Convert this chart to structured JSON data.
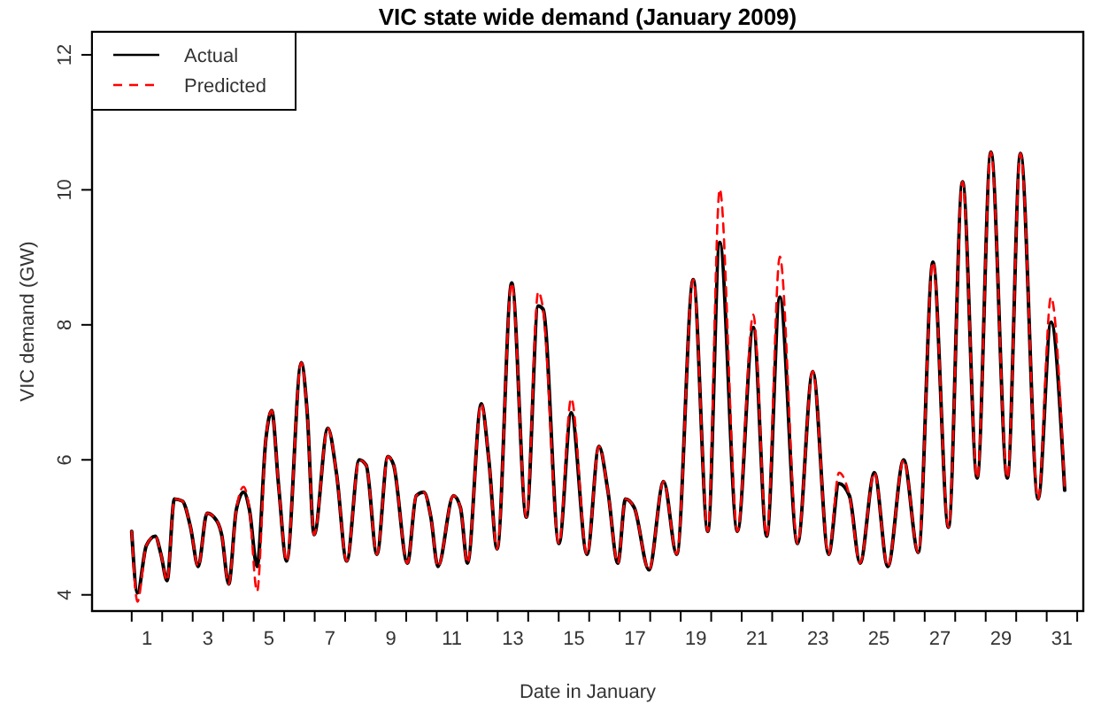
{
  "chart_data": {
    "type": "line",
    "title": "VIC state wide demand (January 2009)",
    "xlabel": "Date in January",
    "ylabel": "VIC demand (GW)",
    "x": [
      0.5,
      0.69,
      0.98,
      1.27,
      1.46,
      1.66,
      1.9,
      2.16,
      2.43,
      2.68,
      2.97,
      3.2,
      3.45,
      3.68,
      3.93,
      4.17,
      4.36,
      4.61,
      4.9,
      5.09,
      5.32,
      5.58,
      6.06,
      6.25,
      6.48,
      6.93,
      7.22,
      7.55,
      7.96,
      8.19,
      8.54,
      8.9,
      9.09,
      9.54,
      9.83,
      10.08,
      10.31,
      10.54,
      11.05,
      11.28,
      11.51,
      11.96,
      12.21,
      12.48,
      12.96,
      13.44,
      13.83,
      13.99,
      14.51,
      14.91,
      15.43,
      15.82,
      16.11,
      16.44,
      16.69,
      16.98,
      17.46,
      17.94,
      18.37,
      18.91,
      19.39,
      19.78,
      20.36,
      20.88,
      21.32,
      21.75,
      22.33,
      22.83,
      23.35,
      23.69,
      24.03,
      24.38,
      24.85,
      25.29,
      25.81,
      26.29,
      26.77,
      27.28,
      27.74,
      28.22,
      28.67,
      29.21,
      29.64,
      30.22,
      30.64,
      31.09
    ],
    "series": [
      {
        "name": "Actual",
        "color": "#000000",
        "line_style": "solid",
        "values": [
          4.94,
          4.03,
          4.73,
          4.87,
          4.6,
          4.21,
          5.42,
          5.39,
          5.0,
          4.42,
          5.21,
          5.15,
          4.89,
          4.16,
          5.26,
          5.52,
          5.26,
          4.42,
          6.31,
          6.73,
          5.6,
          4.5,
          7.44,
          6.73,
          4.89,
          6.47,
          5.78,
          4.5,
          6.0,
          5.92,
          4.6,
          6.05,
          5.92,
          4.47,
          5.47,
          5.52,
          5.15,
          4.42,
          5.47,
          5.29,
          4.47,
          6.83,
          6.0,
          4.68,
          8.62,
          5.15,
          8.28,
          8.23,
          4.76,
          6.7,
          4.6,
          6.2,
          5.55,
          4.47,
          5.42,
          5.29,
          4.37,
          5.68,
          4.6,
          8.67,
          4.94,
          9.22,
          4.94,
          7.96,
          4.87,
          8.41,
          4.76,
          7.31,
          4.6,
          5.65,
          5.47,
          4.47,
          5.81,
          4.42,
          6.0,
          4.63,
          8.93,
          5.0,
          10.12,
          5.73,
          10.56,
          5.73,
          10.54,
          5.42,
          8.04,
          5.55
        ]
      },
      {
        "name": "Predicted",
        "color": "#ff0000",
        "line_style": "dashed",
        "values": [
          4.94,
          3.9,
          4.73,
          4.87,
          4.6,
          4.21,
          5.42,
          5.39,
          5.0,
          4.42,
          5.21,
          5.15,
          4.89,
          4.16,
          5.26,
          5.6,
          5.26,
          4.05,
          6.31,
          6.73,
          5.6,
          4.5,
          7.44,
          6.73,
          4.89,
          6.47,
          5.78,
          4.5,
          6.0,
          5.92,
          4.6,
          6.05,
          5.92,
          4.47,
          5.47,
          5.52,
          5.15,
          4.42,
          5.47,
          5.29,
          4.47,
          6.83,
          6.0,
          4.68,
          8.62,
          5.15,
          8.49,
          8.23,
          4.76,
          6.91,
          4.6,
          6.2,
          5.55,
          4.47,
          5.42,
          5.29,
          4.37,
          5.68,
          4.6,
          8.67,
          4.94,
          10.01,
          4.94,
          8.15,
          4.87,
          9.01,
          4.76,
          7.31,
          4.6,
          5.81,
          5.47,
          4.47,
          5.81,
          4.42,
          6.0,
          4.63,
          8.93,
          5.0,
          10.12,
          5.73,
          10.56,
          5.73,
          10.54,
          5.42,
          8.41,
          5.55
        ]
      }
    ],
    "xlim": [
      -0.8,
      31.7
    ],
    "xticks": [
      {
        "value": 0.5,
        "label": null
      },
      1,
      {
        "value": 1.5,
        "label": null
      },
      {
        "value": 2.5,
        "label": null
      },
      3,
      {
        "value": 3.5,
        "label": null
      },
      {
        "value": 4.5,
        "label": null
      },
      5,
      {
        "value": 5.5,
        "label": null
      },
      {
        "value": 6.5,
        "label": null
      },
      7,
      {
        "value": 7.5,
        "label": null
      },
      {
        "value": 8.5,
        "label": null
      },
      9,
      {
        "value": 9.5,
        "label": null
      },
      {
        "value": 10.5,
        "label": null
      },
      11,
      {
        "value": 11.5,
        "label": null
      },
      {
        "value": 12.5,
        "label": null
      },
      13,
      {
        "value": 13.5,
        "label": null
      },
      {
        "value": 14.5,
        "label": null
      },
      15,
      {
        "value": 15.5,
        "label": null
      },
      {
        "value": 16.5,
        "label": null
      },
      17,
      {
        "value": 17.5,
        "label": null
      },
      {
        "value": 18.5,
        "label": null
      },
      19,
      {
        "value": 19.5,
        "label": null
      },
      {
        "value": 20.5,
        "label": null
      },
      21,
      {
        "value": 21.5,
        "label": null
      },
      {
        "value": 22.5,
        "label": null
      },
      23,
      {
        "value": 23.5,
        "label": null
      },
      {
        "value": 24.5,
        "label": null
      },
      25,
      {
        "value": 25.5,
        "label": null
      },
      {
        "value": 26.5,
        "label": null
      },
      27,
      {
        "value": 27.5,
        "label": null
      },
      {
        "value": 28.5,
        "label": null
      },
      29,
      {
        "value": 29.5,
        "label": null
      },
      {
        "value": 30.5,
        "label": null
      },
      31,
      {
        "value": 31.5,
        "label": null
      }
    ],
    "ylim": [
      3.76,
      12.34
    ],
    "yticks": [
      4,
      6,
      8,
      10,
      12
    ],
    "grid": false,
    "legend": "top left",
    "marker": "none"
  }
}
